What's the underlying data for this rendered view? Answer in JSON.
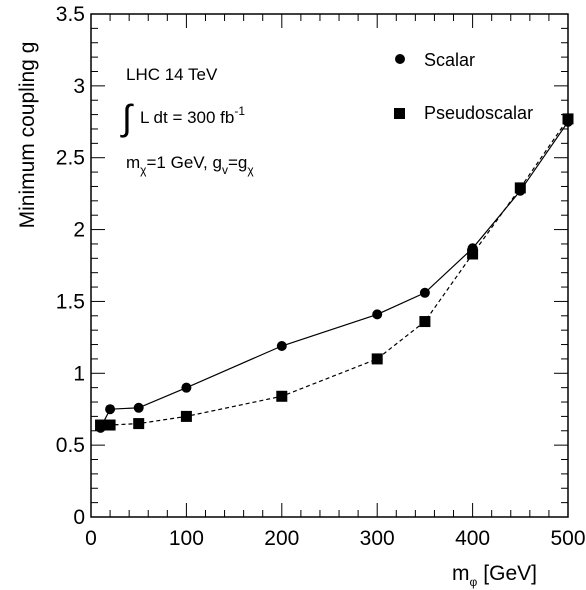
{
  "chart_data": {
    "type": "line",
    "xlabel": "m",
    "xlabel_sub": "φ",
    "xlabel_unit": "[GeV]",
    "ylabel": "Minimum coupling g",
    "xlim": [
      0,
      500
    ],
    "ylim": [
      0,
      3.5
    ],
    "x_ticks": [
      "0",
      "100",
      "200",
      "300",
      "400",
      "500"
    ],
    "y_ticks": [
      "0",
      "0.5",
      "1",
      "1.5",
      "2",
      "2.5",
      "3",
      "3.5"
    ],
    "x_tick_values": [
      0,
      100,
      200,
      300,
      400,
      500
    ],
    "y_tick_values": [
      0,
      0.5,
      1,
      1.5,
      2,
      2.5,
      3,
      3.5
    ],
    "grid": false,
    "legend_position": "top-right",
    "series": [
      {
        "name": "Scalar",
        "marker": "circle",
        "line_style": "solid",
        "x": [
          10,
          20,
          50,
          100,
          200,
          300,
          350,
          400,
          450,
          500
        ],
        "y": [
          0.62,
          0.75,
          0.76,
          0.9,
          1.19,
          1.41,
          1.56,
          1.87,
          2.27,
          2.75
        ]
      },
      {
        "name": "Pseudoscalar",
        "marker": "square",
        "line_style": "dashed",
        "x": [
          10,
          20,
          50,
          100,
          200,
          300,
          350,
          400,
          450,
          500
        ],
        "y": [
          0.64,
          0.64,
          0.65,
          0.7,
          0.84,
          1.1,
          1.36,
          1.83,
          2.29,
          2.77
        ]
      }
    ],
    "annotations": {
      "line1": "LHC 14 TeV",
      "line2_integral": "∫",
      "line2_text": "L dt = 300 fb",
      "line2_sup": "-1",
      "line3_a": "m",
      "line3_a_sub": "χ",
      "line3_b": "=1 GeV, g",
      "line3_b_sub": "v",
      "line3_c": "=g",
      "line3_c_sub": "χ"
    }
  }
}
